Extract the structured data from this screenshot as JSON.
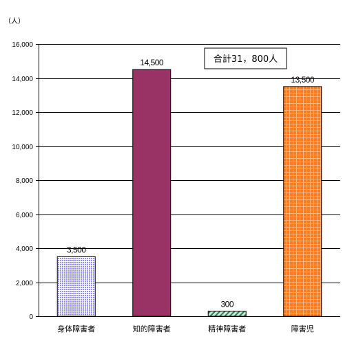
{
  "chart_data": {
    "type": "bar",
    "unit": "（人）",
    "categories": [
      "身体障害者",
      "知的障害者",
      "精神障害者",
      "障害児"
    ],
    "values": [
      3500,
      14500,
      300,
      13500
    ],
    "value_labels": [
      "3,500",
      "14,500",
      "300",
      "13,500"
    ],
    "ylim": [
      0,
      16000
    ],
    "yticks": [
      0,
      2000,
      4000,
      6000,
      8000,
      10000,
      12000,
      14000,
      16000
    ],
    "ytick_labels": [
      "0",
      "2,000",
      "4,000",
      "6,000",
      "8,000",
      "10,000",
      "12,000",
      "14,000",
      "16,000"
    ],
    "grid": true,
    "annotation": "合計31，800人",
    "bar_colors": [
      "#c6c6ff",
      "#993366",
      "#9fd0b4",
      "#ff6600"
    ],
    "bar_patterns": [
      "dots",
      "solid",
      "diagonal",
      "grid"
    ]
  }
}
